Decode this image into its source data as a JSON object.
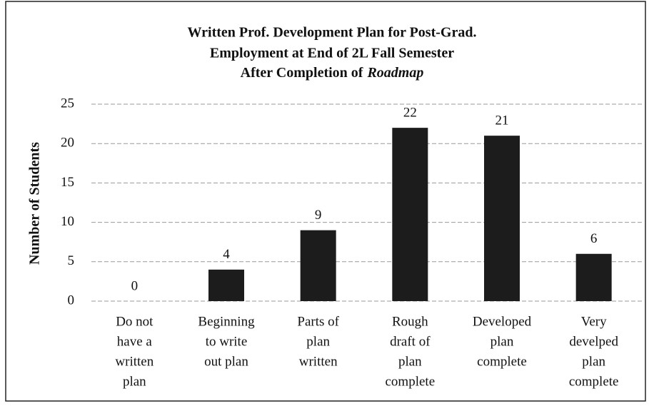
{
  "chart_data": {
    "type": "bar",
    "title": [
      "Written Prof. Development Plan for Post-Grad.",
      "Employment at End of 2L Fall Semester",
      "After Completion of",
      "Roadmap"
    ],
    "y_label": "Number of Students",
    "categories": [
      [
        "Do not",
        "have a",
        "written",
        "plan"
      ],
      [
        "Beginning",
        "to write",
        "out plan"
      ],
      [
        "Parts of",
        "plan",
        "written"
      ],
      [
        "Rough",
        "draft of",
        "plan",
        "complete"
      ],
      [
        "Developed",
        "plan",
        "complete"
      ],
      [
        "Very",
        "develped",
        "plan",
        "complete"
      ]
    ],
    "values": [
      0,
      4,
      9,
      22,
      21,
      6
    ],
    "color": "#1c1c1c",
    "ylim": [
      0,
      25
    ],
    "yticks": [
      0,
      5,
      10,
      15,
      20,
      25
    ],
    "grid": true
  }
}
